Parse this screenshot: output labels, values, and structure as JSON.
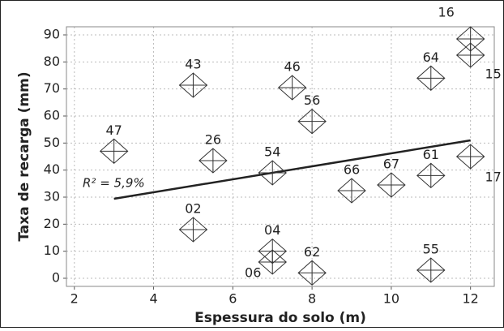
{
  "chart_data": {
    "type": "scatter",
    "x_label": "Espessura do solo (m)",
    "y_label": "Taxa de recarga (mm)",
    "annotation": "R² = 5,9%",
    "series": [
      {
        "color": "#333333",
        "labels": [
          "47",
          "43",
          "26",
          "02",
          "54",
          "04",
          "06",
          "46",
          "56",
          "62",
          "66",
          "67",
          "64",
          "61",
          "55",
          "16",
          "15",
          "17"
        ],
        "x": [
          3,
          5,
          5.5,
          5,
          7,
          7,
          7,
          7.5,
          8,
          8,
          9,
          10,
          11,
          11,
          11,
          12,
          12,
          12
        ],
        "values": [
          47,
          71.4,
          43.5,
          18,
          39,
          10,
          6,
          70.5,
          58,
          2,
          32.4,
          34.5,
          74,
          38,
          3,
          88.5,
          82.5,
          45
        ]
      }
    ],
    "trend_line": {
      "x": [
        3,
        12
      ],
      "values": [
        29.4,
        51
      ]
    },
    "xlim": [
      1.8,
      12.6
    ],
    "xticks": [
      2,
      4,
      6,
      8,
      10,
      12
    ],
    "ylim": [
      -3,
      93
    ],
    "yticks": [
      0,
      10,
      20,
      30,
      40,
      50,
      60,
      70,
      80,
      90
    ],
    "grid": true
  }
}
